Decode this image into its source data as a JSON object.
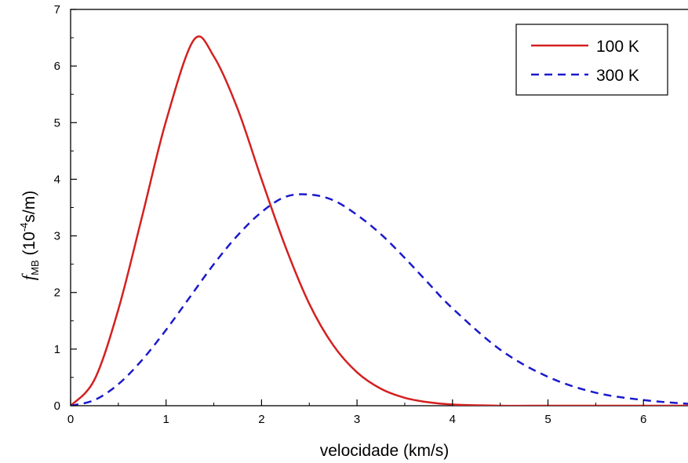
{
  "chart_data": {
    "type": "line",
    "xlabel": "velocidade (km/s)",
    "ylabel": {
      "symbol": "f",
      "subscript": "MB",
      "unit_open": " (10",
      "unit_exp": "-4",
      "unit_close": "s/m)"
    },
    "xlim": [
      0,
      6.5
    ],
    "ylim": [
      0,
      7
    ],
    "xticks": [
      "0",
      "1",
      "2",
      "3",
      "4",
      "5",
      "6"
    ],
    "yticks": [
      "0",
      "1",
      "2",
      "3",
      "4",
      "5",
      "6",
      "7"
    ],
    "grid": false,
    "legend_position": "top-right",
    "series": [
      {
        "name": "100 K",
        "color": "#d42020",
        "style": "solid",
        "x": [
          0,
          0.25,
          0.5,
          0.75,
          1.0,
          1.29,
          1.5,
          1.75,
          2.0,
          2.25,
          2.5,
          2.75,
          3.0,
          3.25,
          3.5,
          3.75,
          4.0,
          4.5,
          5.0,
          5.5,
          6.0,
          6.5
        ],
        "y": [
          0,
          0.46,
          1.7,
          3.35,
          5.03,
          6.46,
          6.17,
          5.24,
          4.0,
          2.81,
          1.8,
          1.07,
          0.59,
          0.3,
          0.14,
          0.06,
          0.02,
          0.0,
          0.0,
          0.0,
          0.0,
          0.0
        ]
      },
      {
        "name": "300 K",
        "color": "#1a1acc",
        "style": "dashed",
        "x": [
          0,
          0.25,
          0.5,
          0.75,
          1.0,
          1.25,
          1.5,
          1.75,
          2.0,
          2.25,
          2.5,
          2.75,
          3.0,
          3.25,
          3.5,
          3.75,
          4.0,
          4.5,
          5.0,
          5.5,
          6.0,
          6.5
        ],
        "y": [
          0,
          0.1,
          0.38,
          0.81,
          1.34,
          1.92,
          2.5,
          3.01,
          3.42,
          3.69,
          3.73,
          3.63,
          3.37,
          3.03,
          2.61,
          2.16,
          1.72,
          0.99,
          0.51,
          0.23,
          0.1,
          0.03
        ]
      }
    ]
  }
}
